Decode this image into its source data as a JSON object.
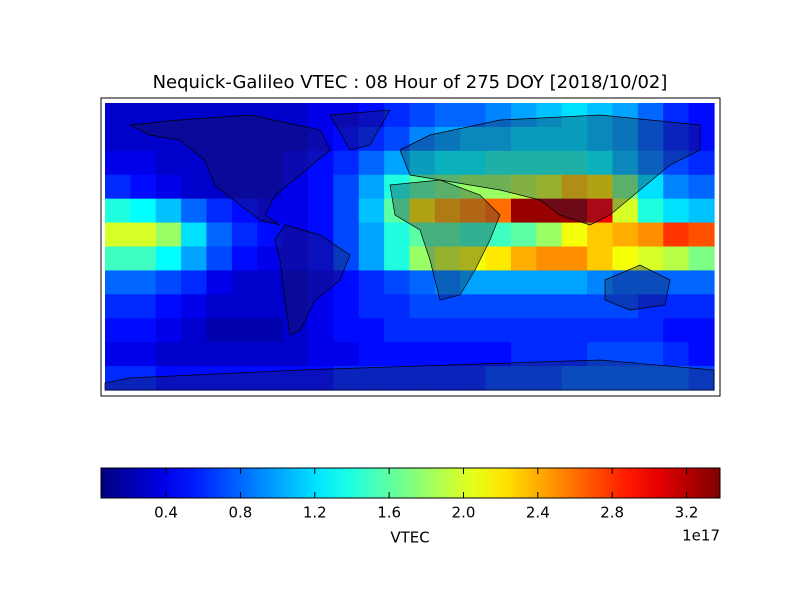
{
  "chart_data": {
    "type": "heatmap",
    "title": "Nequick-Galileo VTEC : 08 Hour of 275 DOY [2018/10/02]",
    "values": [
      [
        0.3,
        0.3,
        0.3,
        0.3,
        0.3,
        0.3,
        0.3,
        0.3,
        0.4,
        0.4,
        0.5,
        0.6,
        0.7,
        0.8,
        0.8,
        0.9,
        1.0,
        1.1,
        1.2,
        1.1,
        1.0,
        0.8,
        0.6,
        0.5
      ],
      [
        0.3,
        0.3,
        0.3,
        0.3,
        0.3,
        0.3,
        0.3,
        0.3,
        0.4,
        0.5,
        0.6,
        0.7,
        0.9,
        1.0,
        1.1,
        1.1,
        1.2,
        1.2,
        1.2,
        1.1,
        1.0,
        0.8,
        0.6,
        0.5
      ],
      [
        0.4,
        0.4,
        0.3,
        0.3,
        0.3,
        0.3,
        0.3,
        0.4,
        0.5,
        0.6,
        0.8,
        1.0,
        1.2,
        1.3,
        1.3,
        1.4,
        1.4,
        1.4,
        1.4,
        1.3,
        1.1,
        0.9,
        0.7,
        0.6
      ],
      [
        0.6,
        0.5,
        0.4,
        0.3,
        0.3,
        0.3,
        0.3,
        0.4,
        0.5,
        0.7,
        1.0,
        1.4,
        1.6,
        1.7,
        1.8,
        1.8,
        1.9,
        2.0,
        2.3,
        2.2,
        1.7,
        1.2,
        0.9,
        0.8
      ],
      [
        1.4,
        1.3,
        1.1,
        0.8,
        0.6,
        0.5,
        0.4,
        0.4,
        0.5,
        0.7,
        1.1,
        1.6,
        2.2,
        2.4,
        2.5,
        2.6,
        3.3,
        3.3,
        3.3,
        3.0,
        2.0,
        1.4,
        1.2,
        1.1
      ],
      [
        2.0,
        2.0,
        1.8,
        1.2,
        0.8,
        0.6,
        0.5,
        0.4,
        0.5,
        0.7,
        1.0,
        1.4,
        1.6,
        1.6,
        1.5,
        1.5,
        1.6,
        1.8,
        2.1,
        2.3,
        2.4,
        2.5,
        2.8,
        2.7
      ],
      [
        1.5,
        1.5,
        1.3,
        1.0,
        0.7,
        0.5,
        0.4,
        0.4,
        0.5,
        0.7,
        1.0,
        1.4,
        1.8,
        2.0,
        2.1,
        2.2,
        2.4,
        2.5,
        2.5,
        2.3,
        2.1,
        2.0,
        1.9,
        1.7
      ],
      [
        0.8,
        0.8,
        0.7,
        0.6,
        0.4,
        0.3,
        0.3,
        0.3,
        0.4,
        0.5,
        0.6,
        0.7,
        0.8,
        0.9,
        1.0,
        1.0,
        1.0,
        1.0,
        1.0,
        0.9,
        0.8,
        0.8,
        0.8,
        0.8
      ],
      [
        0.6,
        0.6,
        0.5,
        0.4,
        0.3,
        0.3,
        0.3,
        0.3,
        0.4,
        0.5,
        0.6,
        0.6,
        0.7,
        0.7,
        0.7,
        0.7,
        0.7,
        0.7,
        0.7,
        0.7,
        0.7,
        0.6,
        0.6,
        0.6
      ],
      [
        0.5,
        0.5,
        0.4,
        0.3,
        0.2,
        0.2,
        0.2,
        0.3,
        0.4,
        0.5,
        0.5,
        0.6,
        0.6,
        0.6,
        0.6,
        0.6,
        0.6,
        0.6,
        0.6,
        0.6,
        0.6,
        0.6,
        0.5,
        0.5
      ],
      [
        0.4,
        0.4,
        0.3,
        0.3,
        0.3,
        0.3,
        0.3,
        0.3,
        0.4,
        0.4,
        0.5,
        0.5,
        0.5,
        0.5,
        0.5,
        0.5,
        0.6,
        0.6,
        0.6,
        0.7,
        0.7,
        0.7,
        0.6,
        0.5
      ],
      [
        0.6,
        0.6,
        0.5,
        0.5,
        0.5,
        0.5,
        0.5,
        0.5,
        0.5,
        0.6,
        0.6,
        0.6,
        0.6,
        0.6,
        0.6,
        0.7,
        0.7,
        0.7,
        0.8,
        0.8,
        0.8,
        0.8,
        0.8,
        0.7
      ]
    ],
    "colorbar": {
      "label": "VTEC",
      "offset_label": "1e17",
      "colormap": "jet",
      "lim": [
        0.05,
        3.38
      ],
      "ticks": [
        0.4,
        0.8,
        1.2,
        1.6,
        {
          "value": 2,
          "label": "2.0"
        },
        2.4,
        2.8,
        3.2
      ]
    }
  }
}
